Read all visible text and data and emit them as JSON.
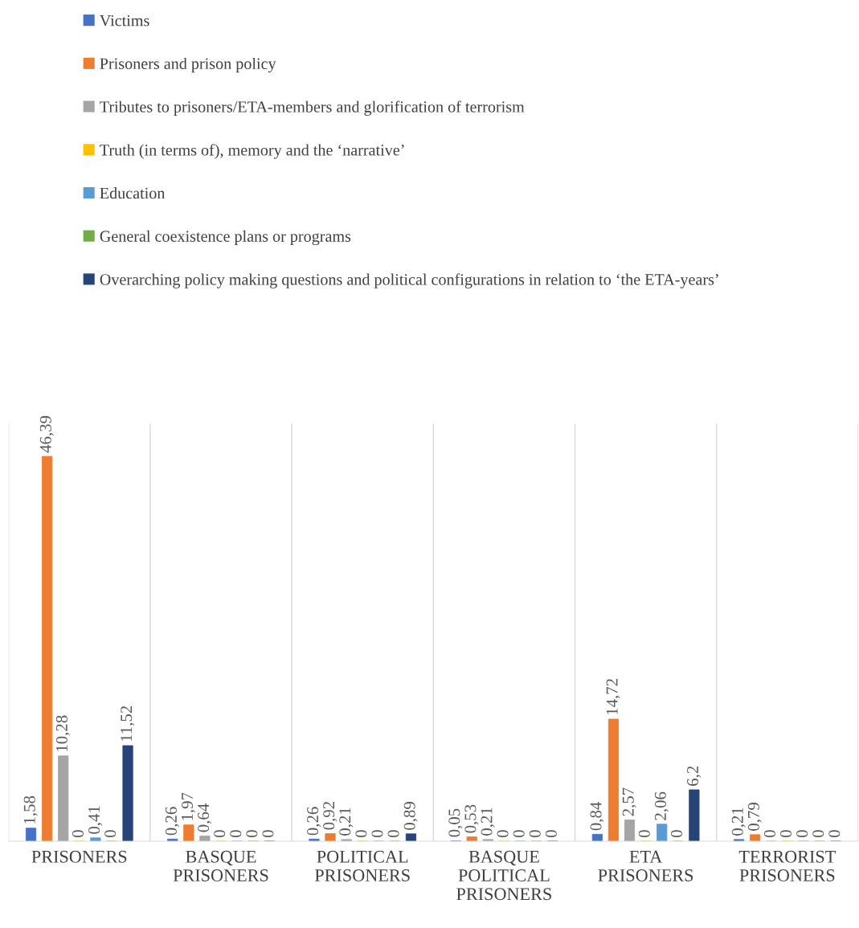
{
  "chart_data": {
    "type": "bar",
    "categories": [
      "PRISONERS",
      "BASQUE PRISONERS",
      "POLITICAL PRISONERS",
      "BASQUE POLITICAL PRISONERS",
      "ETA PRISONERS",
      "TERRORIST PRISONERS"
    ],
    "series": [
      {
        "name": "Victims",
        "color": "#4472c4",
        "values": [
          1.58,
          0.26,
          0.26,
          0.05,
          0.84,
          0.21
        ],
        "value_labels": [
          "1,58",
          "0,26",
          "0,26",
          "0,05",
          "0,84",
          "0,21"
        ]
      },
      {
        "name": "Prisoners and prison policy",
        "color": "#ed7d31",
        "values": [
          46.39,
          1.97,
          0.92,
          0.53,
          14.72,
          0.79
        ],
        "value_labels": [
          "46,39",
          "1,97",
          "0,92",
          "0,53",
          "14,72",
          "0,79"
        ]
      },
      {
        "name": "Tributes to prisoners/ETA-members and glorification of terrorism",
        "color": "#a5a5a5",
        "values": [
          10.28,
          0.64,
          0.21,
          0.21,
          2.57,
          0
        ],
        "value_labels": [
          "10,28",
          "0,64",
          "0,21",
          "0,21",
          "2,57",
          "0"
        ]
      },
      {
        "name": "Truth (in terms of), memory and the ‘narrative’",
        "color": "#ffc000",
        "values": [
          0,
          0,
          0,
          0,
          0,
          0
        ],
        "value_labels": [
          "0",
          "0",
          "0",
          "0",
          "0",
          "0"
        ]
      },
      {
        "name": "Education",
        "color": "#5b9bd5",
        "values": [
          0.41,
          0,
          0,
          0,
          2.06,
          0
        ],
        "value_labels": [
          "0,41",
          "0",
          "0",
          "0",
          "2,06",
          "0"
        ]
      },
      {
        "name": "General coexistence plans or programs",
        "color": "#70ad47",
        "values": [
          0,
          0,
          0,
          0,
          0,
          0
        ],
        "value_labels": [
          "0",
          "0",
          "0",
          "0",
          "0",
          "0"
        ]
      },
      {
        "name": "Overarching policy making questions and political configurations in relation to ‘the ETA-years’",
        "color": "#264478",
        "values": [
          11.52,
          0,
          0.89,
          0,
          6.2,
          0
        ],
        "value_labels": [
          "11,52",
          "0",
          "0,89",
          "0",
          "6,2",
          "0"
        ]
      }
    ],
    "grid": "x",
    "legend": "top"
  }
}
